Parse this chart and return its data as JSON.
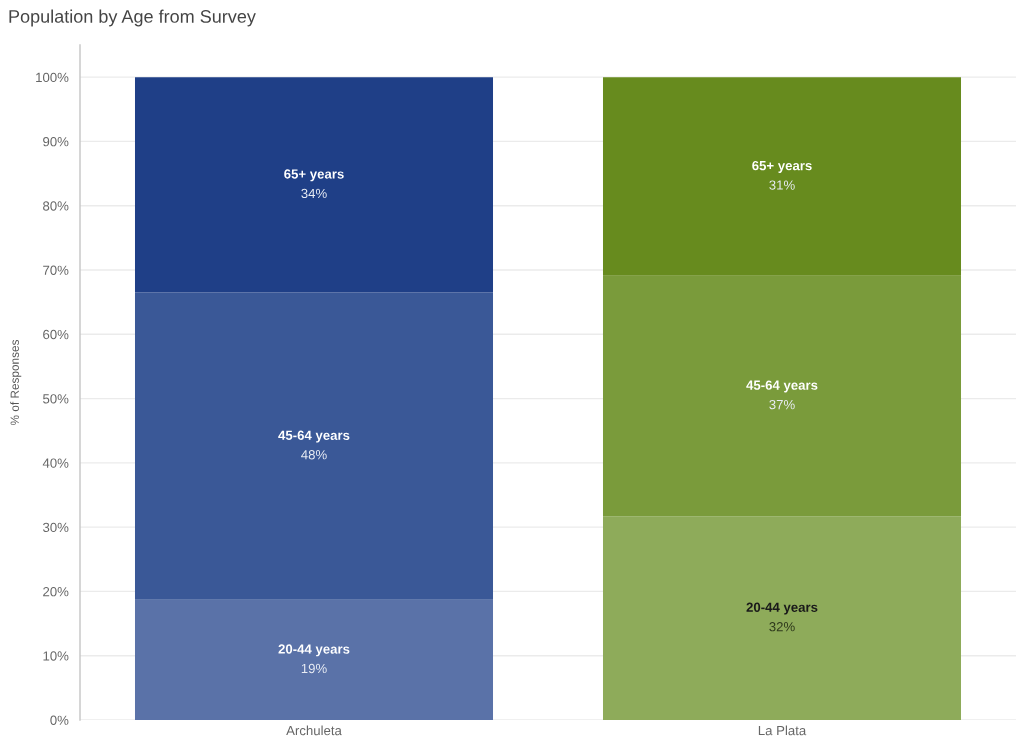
{
  "chart_data": {
    "type": "bar",
    "title": "Population by Age from Survey",
    "ylabel": "% of Responses",
    "categories": [
      "Archuleta",
      "La Plata"
    ],
    "stacked": true,
    "series": [
      {
        "name": "20-44 years",
        "colors": [
          "#5a72a8",
          "#8eab5a"
        ],
        "values": [
          18.7,
          31.7
        ],
        "value_labels": [
          "19%",
          "32%"
        ]
      },
      {
        "name": "45-64 years",
        "colors": [
          "#3a5897",
          "#7a9b3b"
        ],
        "values": [
          47.8,
          37.4
        ],
        "value_labels": [
          "48%",
          "37%"
        ]
      },
      {
        "name": "65+ years",
        "colors": [
          "#1f3f87",
          "#678b1e"
        ],
        "values": [
          33.5,
          30.9
        ],
        "value_labels": [
          "34%",
          "31%"
        ]
      }
    ],
    "ylim": [
      0,
      105
    ],
    "yticks": [
      {
        "value": 0,
        "label": "0%"
      },
      {
        "value": 10,
        "label": "10%"
      },
      {
        "value": 20,
        "label": "20%"
      },
      {
        "value": 30,
        "label": "30%"
      },
      {
        "value": 40,
        "label": "40%"
      },
      {
        "value": 50,
        "label": "50%"
      },
      {
        "value": 60,
        "label": "60%"
      },
      {
        "value": 70,
        "label": "70%"
      },
      {
        "value": 80,
        "label": "80%"
      },
      {
        "value": 90,
        "label": "90%"
      },
      {
        "value": 100,
        "label": "100%"
      }
    ],
    "grid": "y"
  }
}
